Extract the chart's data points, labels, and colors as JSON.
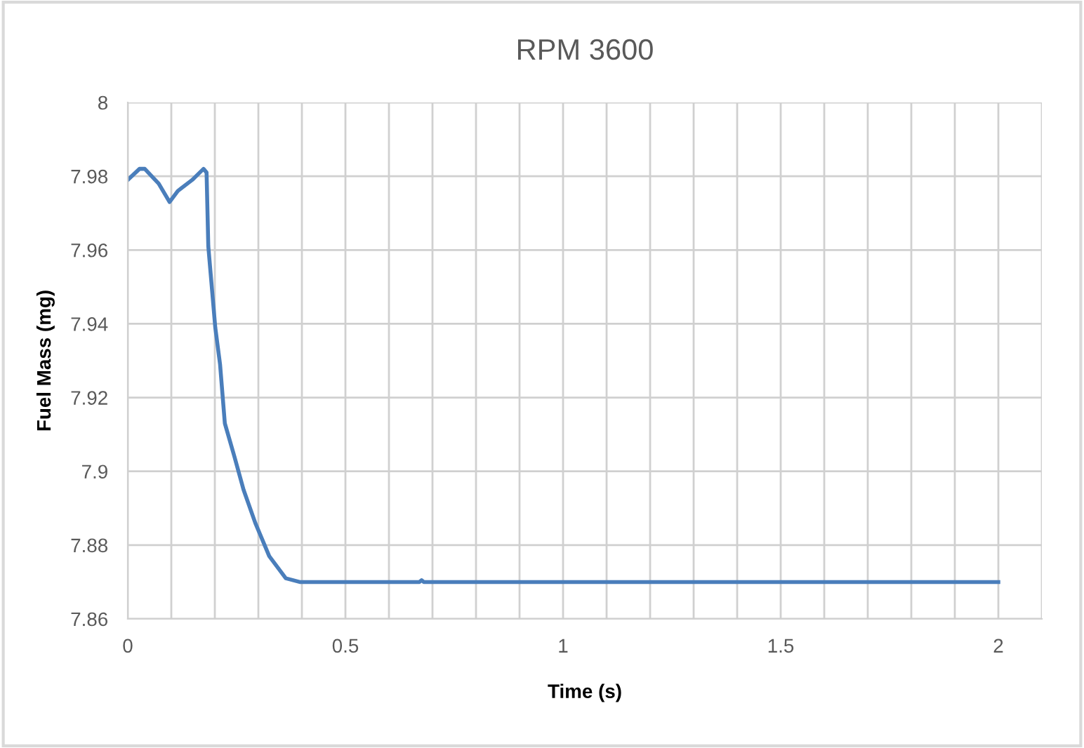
{
  "chart_data": {
    "type": "line",
    "title": "RPM 3600",
    "xlabel": "Time (s)",
    "ylabel": "Fuel Mass (mg)",
    "series": [
      {
        "color": "#4a7ebb",
        "x": [
          0,
          0.027,
          0.039,
          0.071,
          0.096,
          0.115,
          0.148,
          0.174,
          0.181,
          0.185,
          0.201,
          0.212,
          0.223,
          0.245,
          0.266,
          0.293,
          0.325,
          0.363,
          0.395,
          0.67,
          0.675,
          0.68,
          2.0
        ],
        "values": [
          7.979,
          7.982,
          7.982,
          7.978,
          7.973,
          7.976,
          7.979,
          7.982,
          7.981,
          7.961,
          7.939,
          7.929,
          7.913,
          7.904,
          7.895,
          7.886,
          7.877,
          7.871,
          7.87,
          7.87,
          7.8705,
          7.87,
          7.87
        ]
      }
    ],
    "xlim": [
      0,
      2.1
    ],
    "xticks": [
      0,
      {
        "value": 0.1,
        "label": null
      },
      {
        "value": 0.2,
        "label": null
      },
      {
        "value": 0.3,
        "label": null
      },
      {
        "value": 0.4,
        "label": null
      },
      0.5,
      {
        "value": 0.6,
        "label": null
      },
      {
        "value": 0.7,
        "label": null
      },
      {
        "value": 0.8,
        "label": null
      },
      {
        "value": 0.9,
        "label": null
      },
      1,
      {
        "value": 1.1,
        "label": null
      },
      {
        "value": 1.2,
        "label": null
      },
      {
        "value": 1.3,
        "label": null
      },
      {
        "value": 1.4,
        "label": null
      },
      1.5,
      {
        "value": 1.6,
        "label": null
      },
      {
        "value": 1.7,
        "label": null
      },
      {
        "value": 1.8,
        "label": null
      },
      {
        "value": 1.9,
        "label": null
      },
      2,
      {
        "value": 2.1,
        "label": null
      }
    ],
    "ylim": [
      7.86,
      8
    ],
    "yticks": [
      7.86,
      7.88,
      7.9,
      7.92,
      7.94,
      7.96,
      7.98,
      8
    ],
    "grid": true,
    "marker": "none",
    "line_style": "solid"
  }
}
